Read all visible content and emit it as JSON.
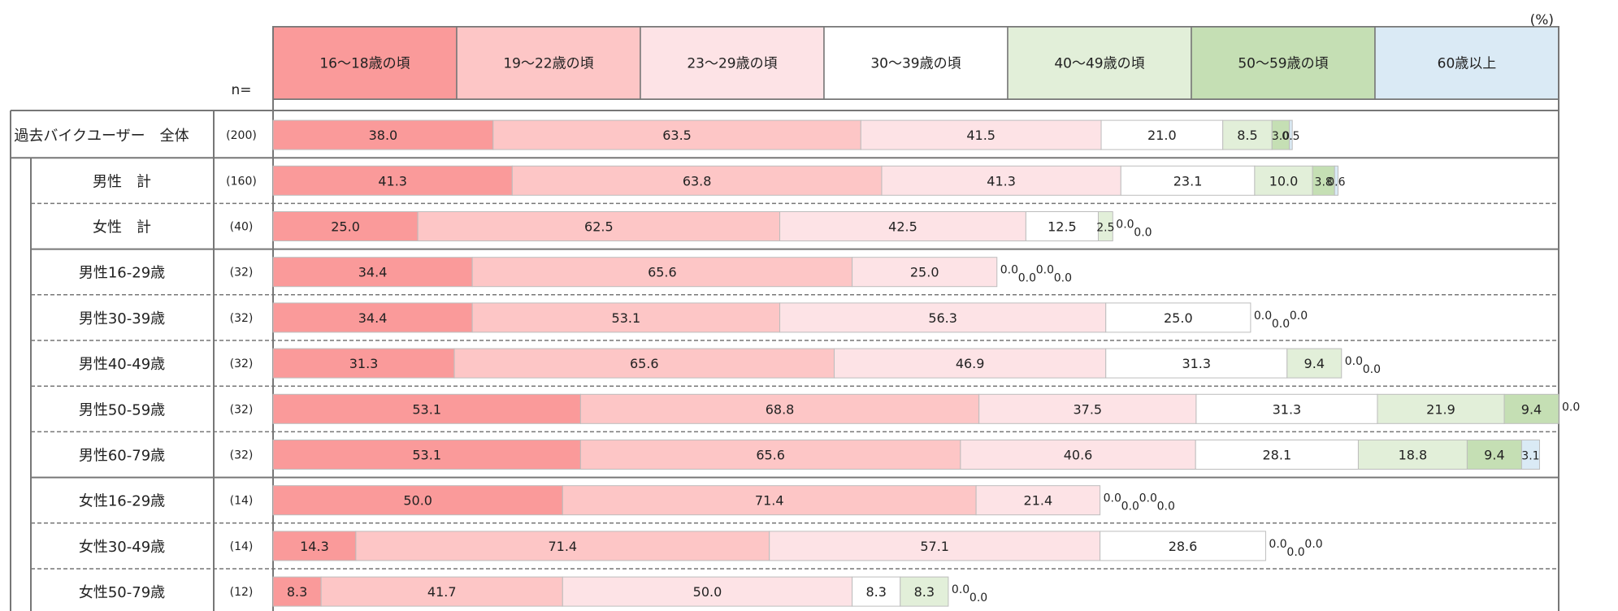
{
  "chart_data": {
    "type": "bar",
    "stacked": true,
    "orientation": "horizontal",
    "unit_label": "(%)",
    "n_header": "n=",
    "legend_position": "top",
    "series": [
      {
        "name": "16～18歳の頃",
        "color": "#fa9a9a"
      },
      {
        "name": "19～22歳の頃",
        "color": "#fdc6c6"
      },
      {
        "name": "23～29歳の頃",
        "color": "#fde3e6"
      },
      {
        "name": "30～39歳の頃",
        "color": "#ffffff"
      },
      {
        "name": "40～49歳の頃",
        "color": "#e2efd9"
      },
      {
        "name": "50～59歳の頃",
        "color": "#c5dfb4"
      },
      {
        "name": "60歳以上",
        "color": "#daeaf5"
      }
    ],
    "categories": [
      {
        "label": "過去バイクユーザー　全体",
        "n": "(200)",
        "values": [
          "38.0",
          "63.5",
          "41.5",
          "21.0",
          "8.5",
          "3.0",
          "0.5"
        ]
      },
      {
        "label": "男性　計",
        "n": "(160)",
        "values": [
          "41.3",
          "63.8",
          "41.3",
          "23.1",
          "10.0",
          "3.8",
          "0.6"
        ]
      },
      {
        "label": "女性　計",
        "n": "(40)",
        "values": [
          "25.0",
          "62.5",
          "42.5",
          "12.5",
          "2.5",
          "0.0",
          "0.0"
        ]
      },
      {
        "label": "男性16-29歳",
        "n": "(32)",
        "values": [
          "34.4",
          "65.6",
          "25.0",
          "0.0",
          "0.0",
          "0.0",
          "0.0"
        ]
      },
      {
        "label": "男性30-39歳",
        "n": "(32)",
        "values": [
          "34.4",
          "53.1",
          "56.3",
          "25.0",
          "0.0",
          "0.0",
          "0.0"
        ]
      },
      {
        "label": "男性40-49歳",
        "n": "(32)",
        "values": [
          "31.3",
          "65.6",
          "46.9",
          "31.3",
          "9.4",
          "0.0",
          "0.0"
        ]
      },
      {
        "label": "男性50-59歳",
        "n": "(32)",
        "values": [
          "53.1",
          "68.8",
          "37.5",
          "31.3",
          "21.9",
          "9.4",
          "0.0"
        ]
      },
      {
        "label": "男性60-79歳",
        "n": "(32)",
        "values": [
          "53.1",
          "65.6",
          "40.6",
          "28.1",
          "18.8",
          "9.4",
          "3.1"
        ]
      },
      {
        "label": "女性16-29歳",
        "n": "(14)",
        "values": [
          "50.0",
          "71.4",
          "21.4",
          "0.0",
          "0.0",
          "0.0",
          "0.0"
        ]
      },
      {
        "label": "女性30-49歳",
        "n": "(14)",
        "values": [
          "14.3",
          "71.4",
          "57.1",
          "28.6",
          "0.0",
          "0.0",
          "0.0"
        ]
      },
      {
        "label": "女性50-79歳",
        "n": "(12)",
        "values": [
          "8.3",
          "41.7",
          "50.0",
          "8.3",
          "8.3",
          "0.0",
          "0.0"
        ]
      }
    ]
  }
}
